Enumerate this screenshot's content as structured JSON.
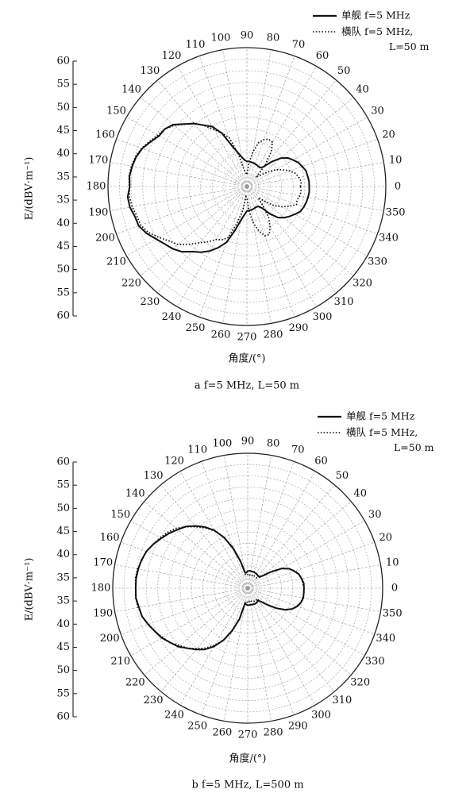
{
  "chart_data": [
    {
      "type": "polar-line",
      "caption": "a f=5 MHz, L=50 m",
      "ylabel": "E/(dBV·m⁻¹)",
      "xlabel": "角度/(°)",
      "angle_ticks": [
        0,
        10,
        20,
        30,
        40,
        50,
        60,
        70,
        80,
        90,
        100,
        110,
        120,
        130,
        140,
        150,
        160,
        170,
        180,
        190,
        200,
        210,
        220,
        230,
        240,
        250,
        260,
        270,
        280,
        290,
        300,
        310,
        320,
        330,
        340,
        350
      ],
      "radial_tick_labels": [
        "60",
        "55",
        "50",
        "45",
        "40",
        "35",
        "35",
        "40",
        "45",
        "50",
        "55",
        "60"
      ],
      "rlim": [
        0,
        60
      ],
      "legend": [
        {
          "label": "单舰 f=5 MHz",
          "style": "solid"
        },
        {
          "label": "横队 f=5 MHz, L=50 m",
          "style": "dotted"
        }
      ],
      "series": [
        {
          "name": "单舰 f=5 MHz",
          "style": "solid",
          "angles": [
            0,
            5,
            10,
            15,
            20,
            25,
            30,
            35,
            40,
            45,
            50,
            55,
            60,
            65,
            70,
            75,
            80,
            85,
            90,
            95,
            100,
            105,
            110,
            115,
            120,
            125,
            130,
            135,
            140,
            145,
            150,
            155,
            160,
            165,
            170,
            175,
            180,
            185,
            190,
            195,
            200,
            205,
            210,
            215,
            220,
            225,
            230,
            235,
            240,
            245,
            250,
            255,
            260,
            265,
            270,
            275,
            280,
            285,
            290,
            295,
            300,
            305,
            310,
            315,
            320,
            325,
            330,
            335,
            340,
            345,
            350,
            355
          ],
          "values": [
            26.9,
            26.9,
            26.6,
            26.4,
            25.4,
            24.5,
            23.0,
            21.6,
            19.1,
            15.2,
            11.1,
            9.9,
            10.0,
            10.2,
            10.4,
            10.6,
            10.7,
            10.9,
            10.9,
            11.5,
            12.9,
            15.2,
            18.6,
            25.3,
            29.9,
            32.3,
            35.5,
            38.2,
            41.6,
            43.3,
            43.8,
            45.8,
            48.1,
            49.5,
            50.3,
            50.9,
            50.6,
            51.7,
            51.3,
            50.1,
            49.7,
            47.8,
            45.3,
            43.3,
            41.8,
            39.8,
            36.7,
            34.6,
            32.2,
            29.1,
            25.6,
            19.3,
            14.7,
            12.2,
            10.6,
            10.4,
            10.3,
            10.1,
            9.9,
            9.7,
            9.9,
            11.3,
            15.3,
            18.9,
            20.9,
            22.5,
            23.9,
            25.5,
            26.1,
            26.5,
            26.8,
            27.0
          ]
        },
        {
          "name": "横队 f=5 MHz, L=50 m",
          "style": "dotted",
          "angles": [
            0,
            5,
            10,
            15,
            20,
            25,
            30,
            35,
            40,
            45,
            50,
            55,
            60,
            65,
            70,
            75,
            80,
            85,
            90,
            95,
            100,
            105,
            110,
            115,
            120,
            125,
            130,
            135,
            140,
            145,
            150,
            155,
            160,
            165,
            170,
            175,
            180,
            185,
            190,
            195,
            200,
            205,
            210,
            215,
            220,
            225,
            230,
            235,
            240,
            245,
            250,
            255,
            260,
            265,
            270,
            275,
            280,
            285,
            290,
            295,
            300,
            305,
            310,
            315,
            320,
            325,
            330,
            335,
            340,
            345,
            350,
            355
          ],
          "values": [
            23.1,
            23.6,
            22.8,
            21.8,
            19.7,
            17.1,
            14.6,
            10.9,
            7.5,
            6.2,
            12.5,
            18.3,
            22.1,
            22.5,
            21.6,
            19.6,
            15.4,
            10.4,
            5.1,
            6.1,
            7.6,
            15.2,
            22.5,
            25.5,
            28.4,
            32.1,
            35.8,
            38.0,
            41.1,
            43.3,
            44.4,
            46.3,
            48.4,
            49.8,
            50.7,
            51.1,
            50.8,
            50.9,
            50.3,
            49.2,
            48.8,
            46.9,
            43.9,
            41.0,
            38.9,
            35.3,
            31.7,
            29.1,
            26.4,
            25.4,
            23.4,
            16.3,
            10.5,
            4.4,
            5.0,
            10.7,
            16.1,
            19.8,
            22.6,
            22.9,
            20.1,
            16.3,
            10.7,
            6.9,
            9.5,
            14.5,
            17.5,
            20.2,
            22.8,
            22.4,
            23.2,
            23.5
          ]
        }
      ]
    },
    {
      "type": "polar-line",
      "caption": "b f=5 MHz, L=500 m",
      "ylabel": "E/(dBV·m⁻¹)",
      "xlabel": "角度/(°)",
      "angle_ticks": [
        0,
        10,
        20,
        30,
        40,
        50,
        60,
        70,
        80,
        90,
        100,
        110,
        120,
        130,
        140,
        150,
        160,
        170,
        180,
        190,
        200,
        210,
        220,
        230,
        240,
        250,
        260,
        270,
        280,
        290,
        300,
        310,
        320,
        330,
        340,
        350
      ],
      "radial_tick_labels": [
        "60",
        "55",
        "50",
        "45",
        "40",
        "35",
        "35",
        "40",
        "45",
        "50",
        "55",
        "60"
      ],
      "rlim": [
        0,
        60
      ],
      "legend": [
        {
          "label": "单舰 f=5 MHz",
          "style": "solid"
        },
        {
          "label": "横队 f=5 MHz, L=50 m",
          "style": "dotted"
        }
      ],
      "series": [
        {
          "name": "单舰 f=5 MHz",
          "style": "solid",
          "angles": [
            0,
            5,
            10,
            15,
            20,
            25,
            30,
            35,
            40,
            45,
            50,
            55,
            60,
            65,
            70,
            75,
            80,
            85,
            90,
            95,
            100,
            105,
            110,
            115,
            120,
            125,
            130,
            135,
            140,
            145,
            150,
            155,
            160,
            165,
            170,
            175,
            180,
            185,
            190,
            195,
            200,
            205,
            210,
            215,
            220,
            225,
            230,
            235,
            240,
            245,
            250,
            255,
            260,
            265,
            270,
            275,
            280,
            285,
            290,
            295,
            300,
            305,
            310,
            315,
            320,
            325,
            330,
            335,
            340,
            345,
            350,
            355
          ],
          "values": [
            25.0,
            25.0,
            24.3,
            23.6,
            22.1,
            20.5,
            17.6,
            12.6,
            8.5,
            7.2,
            7.1,
            7.4,
            7.5,
            7.6,
            7.8,
            7.6,
            7.8,
            7.7,
            7.6,
            6.9,
            7.2,
            12.4,
            18.7,
            24.9,
            29.7,
            33.2,
            36.1,
            38.8,
            40.6,
            42.6,
            44.4,
            46.3,
            47.9,
            48.8,
            49.4,
            49.8,
            49.8,
            49.9,
            49.1,
            48.6,
            47.1,
            45.5,
            44.1,
            42.1,
            40.4,
            37.8,
            35.6,
            33.3,
            29.9,
            25.5,
            20.0,
            14.2,
            6.7,
            7.3,
            7.6,
            7.5,
            7.4,
            7.6,
            7.5,
            7.7,
            7.6,
            7.4,
            7.1,
            8.6,
            11.4,
            15.5,
            19.2,
            21.8,
            23.5,
            24.5,
            25.1,
            25.0
          ]
        },
        {
          "name": "横队 f=5 MHz, L=50 m",
          "style": "dotted",
          "angles": [
            0,
            5,
            10,
            15,
            20,
            25,
            30,
            35,
            40,
            45,
            50,
            55,
            60,
            65,
            70,
            75,
            80,
            85,
            90,
            95,
            100,
            105,
            110,
            115,
            120,
            125,
            130,
            135,
            140,
            145,
            150,
            155,
            160,
            165,
            170,
            175,
            180,
            185,
            190,
            195,
            200,
            205,
            210,
            215,
            220,
            225,
            230,
            235,
            240,
            245,
            250,
            255,
            260,
            265,
            270,
            275,
            280,
            285,
            290,
            295,
            300,
            305,
            310,
            315,
            320,
            325,
            330,
            335,
            340,
            345,
            350,
            355
          ],
          "values": [
            25.1,
            24.6,
            24.4,
            23.8,
            22.4,
            20.3,
            17.4,
            13.1,
            8.4,
            6.4,
            6.1,
            6.0,
            6.1,
            6.5,
            6.0,
            6.4,
            5.9,
            6.5,
            6.1,
            6.5,
            6.3,
            12.9,
            19.5,
            25.1,
            29.6,
            32.6,
            35.6,
            38.6,
            41.5,
            43.4,
            44.9,
            46.3,
            48.0,
            48.6,
            49.7,
            50.1,
            49.8,
            50.0,
            49.4,
            48.6,
            46.9,
            45.5,
            43.7,
            42.2,
            39.6,
            37.7,
            35.1,
            32.5,
            29.2,
            25.4,
            20.7,
            13.7,
            6.8,
            6.1,
            6.5,
            5.9,
            6.5,
            6.0,
            6.3,
            6.5,
            6.2,
            6.5,
            6.2,
            8.3,
            11.8,
            15.6,
            19.0,
            21.8,
            23.2,
            24.4,
            24.8,
            25.1
          ]
        }
      ]
    }
  ]
}
